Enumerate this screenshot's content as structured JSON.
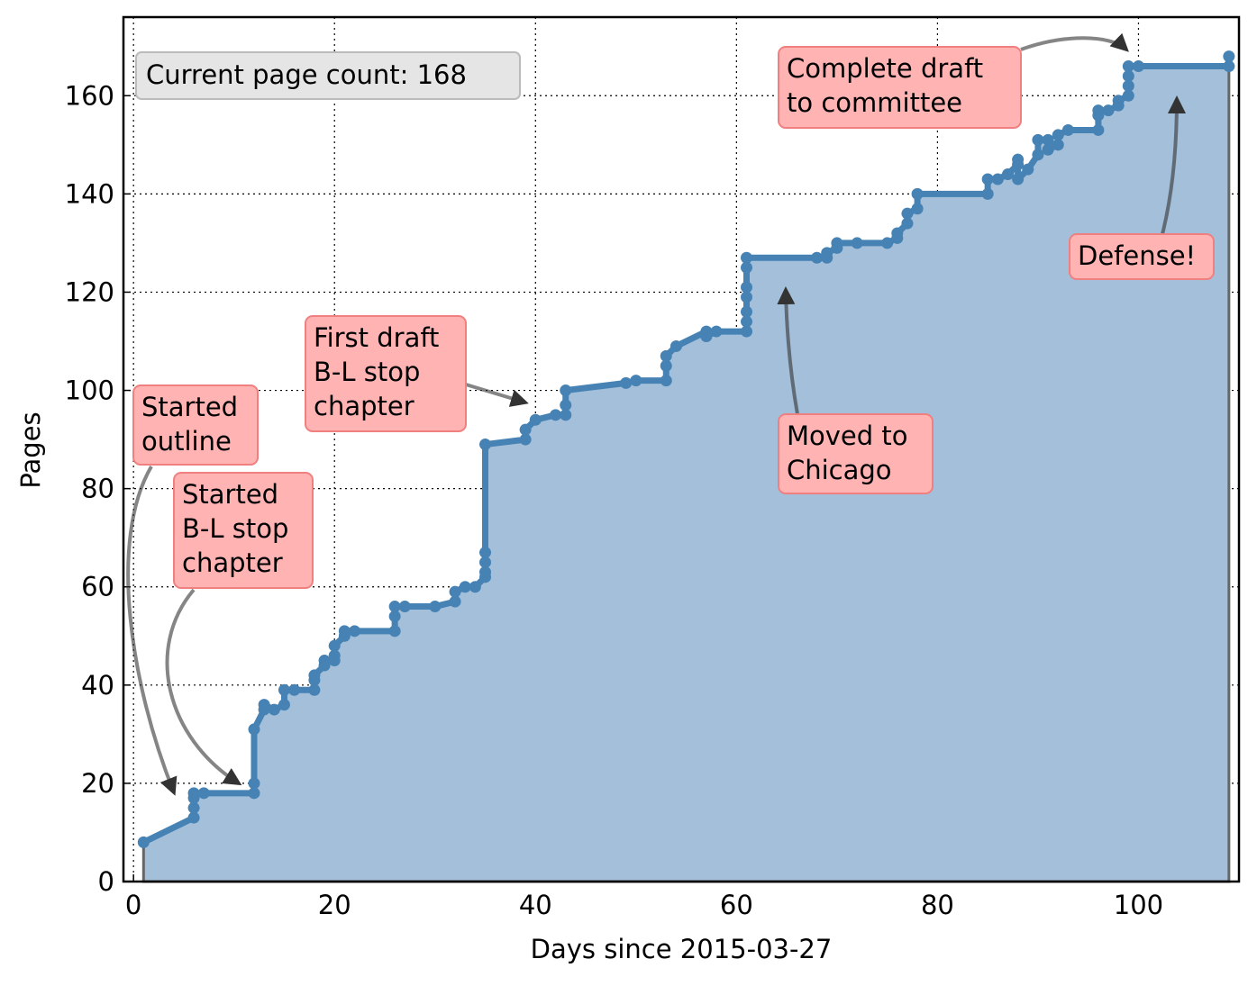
{
  "chart_data": {
    "type": "line",
    "xlabel": "Days since 2015-03-27",
    "ylabel": "Pages",
    "info": "Current page count: 168",
    "x": [
      1,
      6,
      6,
      6,
      6,
      7,
      12,
      12,
      12,
      13,
      13,
      14,
      15,
      15,
      16,
      18,
      18,
      18,
      19,
      19,
      20,
      20,
      20,
      21,
      21,
      22,
      26,
      26,
      26,
      27,
      30,
      32,
      32,
      33,
      34,
      35,
      35,
      35,
      35,
      35,
      39,
      39,
      40,
      42,
      43,
      43,
      43,
      49,
      50,
      53,
      53,
      53,
      54,
      57,
      57,
      58,
      61,
      61,
      61,
      61,
      61,
      61,
      61,
      68,
      69,
      69,
      70,
      70,
      72,
      75,
      76,
      76,
      77,
      77,
      78,
      78,
      85,
      85,
      86,
      87,
      88,
      88,
      88,
      89,
      90,
      90,
      91,
      91,
      92,
      92,
      93,
      96,
      96,
      96,
      97,
      98,
      98,
      99,
      99,
      99,
      99,
      100,
      109,
      109
    ],
    "series": [
      {
        "color": "#4682b4",
        "fill": "#a3bfd9",
        "values": [
          8,
          13,
          15,
          17,
          18,
          18,
          18,
          20,
          31,
          35,
          36,
          35,
          36,
          39,
          39,
          39,
          41,
          42,
          44,
          45,
          45,
          46,
          48,
          50,
          51,
          51,
          51,
          54,
          56,
          56,
          56,
          57,
          59,
          60,
          60,
          62,
          63,
          65,
          67,
          89,
          90,
          92,
          94,
          95,
          95,
          97,
          100,
          101.5,
          102,
          102,
          105,
          107,
          109,
          112,
          111,
          112,
          112,
          114,
          116,
          119,
          121,
          125,
          127,
          127,
          127,
          128,
          129,
          130,
          130,
          130,
          131,
          132,
          134,
          136,
          137,
          140,
          140,
          143,
          143,
          144,
          146,
          147,
          143,
          145,
          148,
          151,
          151,
          149,
          150,
          152,
          153,
          153,
          156,
          157,
          157,
          158,
          159,
          160,
          162,
          164,
          166,
          166,
          166,
          168
        ]
      }
    ],
    "xlim": [
      -1,
      110
    ],
    "ylim": [
      0,
      176
    ],
    "xticks": [
      0,
      20,
      40,
      60,
      80,
      100
    ],
    "yticks": [
      0,
      20,
      40,
      60,
      80,
      100,
      120,
      140,
      160
    ],
    "grid": true,
    "annotations": [
      {
        "text": [
          "Started",
          "outline"
        ]
      },
      {
        "text": [
          "Started",
          "B-L stop",
          "chapter"
        ]
      },
      {
        "text": [
          "First draft",
          "B-L stop",
          "chapter"
        ]
      },
      {
        "text": [
          "Moved to",
          "Chicago"
        ]
      },
      {
        "text": [
          "Complete draft",
          "to committee"
        ]
      },
      {
        "text": [
          "Defense!"
        ]
      }
    ]
  }
}
